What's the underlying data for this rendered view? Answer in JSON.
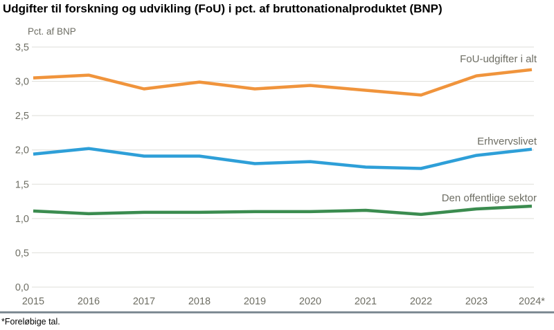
{
  "chart_data": {
    "type": "line",
    "title": "Udgifter til forskning og udvikling (FoU) i pct. af bruttonationalproduktet (BNP)",
    "ylabel": "Pct. af BNP",
    "xlabel": "",
    "categories": [
      "2015",
      "2016",
      "2017",
      "2018",
      "2019",
      "2020",
      "2021",
      "2022",
      "2023",
      "2024*"
    ],
    "ylim": [
      0,
      3.5
    ],
    "ytick_step": 0.5,
    "ytick_labels": [
      "0,0",
      "0,5",
      "1,0",
      "1,5",
      "2,0",
      "2,5",
      "3,0",
      "3,5"
    ],
    "grid": true,
    "legend_position": "inline-right-of-lines",
    "decimal_separator": ",",
    "series": [
      {
        "name": "FoU-udgifter i alt",
        "color": "#F0943C",
        "values": [
          3.05,
          3.09,
          2.89,
          2.99,
          2.89,
          2.94,
          2.87,
          2.8,
          3.08,
          3.17
        ]
      },
      {
        "name": "Erhvervslivet",
        "color": "#2E9FD8",
        "values": [
          1.94,
          2.02,
          1.91,
          1.91,
          1.8,
          1.83,
          1.75,
          1.73,
          1.92,
          2.01
        ]
      },
      {
        "name": "Den offentlige sektor",
        "color": "#3B8C4F",
        "values": [
          1.11,
          1.07,
          1.09,
          1.09,
          1.1,
          1.1,
          1.12,
          1.06,
          1.14,
          1.18
        ]
      }
    ],
    "footnote": "*Foreløbige tal.",
    "colors": {
      "grid": "#DEDED8",
      "axis_text": "#6E6E64",
      "title_text": "#000000",
      "divider": "#7F8B94"
    }
  }
}
